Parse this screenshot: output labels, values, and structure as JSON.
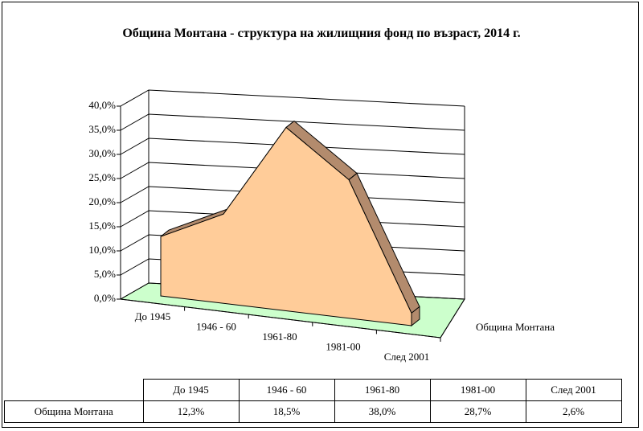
{
  "chart_data": {
    "type": "area3d",
    "title": "Община Монтана - структура на жилищния фонд по възраст, 2014 г.",
    "categories": [
      "До 1945",
      "1946 - 60",
      "1961-80",
      "1981-00",
      "След 2001"
    ],
    "series": [
      {
        "name": "Община Монтана",
        "color": "#ffcc99",
        "values": [
          12.3,
          18.5,
          38.0,
          28.7,
          2.6
        ],
        "value_labels": [
          "12,3%",
          "18,5%",
          "38,0%",
          "28,7%",
          "2,6%"
        ]
      }
    ],
    "ylim": [
      0,
      40
    ],
    "yticks": [
      {
        "value": 0,
        "label": "0,0%"
      },
      {
        "value": 5,
        "label": "5,0%"
      },
      {
        "value": 10,
        "label": "10,0%"
      },
      {
        "value": 15,
        "label": "15,0%"
      },
      {
        "value": 20,
        "label": "20,0%"
      },
      {
        "value": 25,
        "label": "25,0%"
      },
      {
        "value": 30,
        "label": "30,0%"
      },
      {
        "value": 35,
        "label": "35,0%"
      },
      {
        "value": 40,
        "label": "40,0%"
      }
    ],
    "grid": true,
    "data_table": true
  }
}
